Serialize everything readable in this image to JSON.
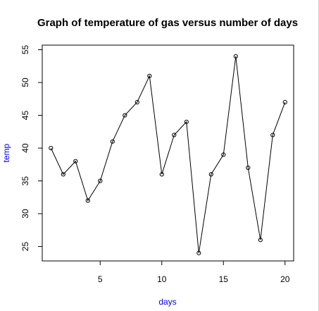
{
  "chart_data": {
    "type": "line",
    "title": "Graph of temperature of gas versus number of days",
    "xlabel": "days",
    "ylabel": "temp",
    "xlim": [
      0.3,
      20.7
    ],
    "ylim": [
      22.8,
      55.7
    ],
    "xticks": [
      5,
      10,
      15,
      20
    ],
    "yticks": [
      25,
      30,
      35,
      40,
      45,
      50,
      55
    ],
    "grid": false,
    "markers": "open-circle",
    "series": [
      {
        "x": [
          1,
          2,
          3,
          4,
          5,
          6,
          7,
          8,
          9,
          10,
          11,
          12,
          13,
          14,
          15,
          16,
          17,
          18,
          19,
          20
        ],
        "values": [
          40,
          36,
          38,
          32,
          35,
          41,
          45,
          47,
          51,
          36,
          42,
          44,
          24,
          36,
          39,
          54,
          37,
          26,
          42,
          47
        ]
      }
    ],
    "colors": {
      "axis_label": "#0000ff",
      "line": "#000000",
      "text": "#000000"
    }
  }
}
